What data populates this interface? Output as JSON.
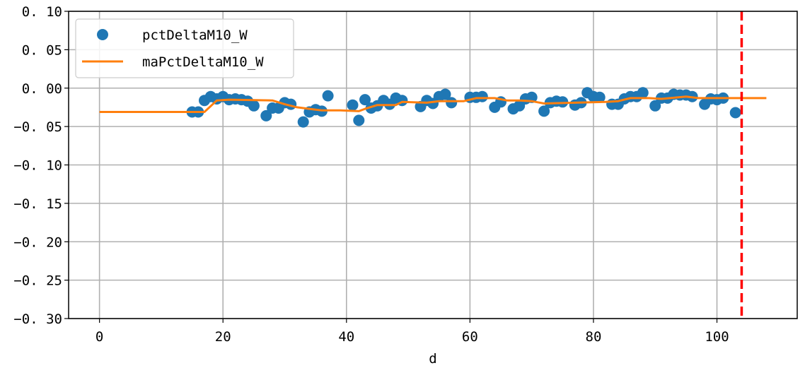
{
  "chart_data": {
    "type": "scatter",
    "xlabel": "d",
    "ylabel": "",
    "xlim": [
      -5,
      113
    ],
    "ylim": [
      -0.3,
      0.1
    ],
    "x_ticks": [
      0,
      20,
      40,
      60,
      80,
      100
    ],
    "x_tick_labels": [
      "0",
      "20",
      "40",
      "60",
      "80",
      "100"
    ],
    "y_ticks": [
      0.1,
      0.05,
      0.0,
      -0.05,
      -0.1,
      -0.15,
      -0.2,
      -0.25,
      -0.3
    ],
    "y_tick_labels": [
      "0. 10",
      "0. 05",
      "0. 00",
      "−0. 05",
      "−0. 10",
      "−0. 15",
      "−0. 20",
      "−0. 25",
      "−0. 30"
    ],
    "grid": true,
    "legend_position": "top-left",
    "series": [
      {
        "name": "pctDeltaM10_W",
        "kind": "scatter",
        "color": "#1f77b4",
        "points": [
          [
            15,
            -0.031
          ],
          [
            16,
            -0.031
          ],
          [
            17,
            -0.016
          ],
          [
            18,
            -0.011
          ],
          [
            19,
            -0.014
          ],
          [
            20,
            -0.011
          ],
          [
            21,
            -0.015
          ],
          [
            22,
            -0.014
          ],
          [
            23,
            -0.015
          ],
          [
            24,
            -0.017
          ],
          [
            25,
            -0.023
          ],
          [
            27,
            -0.036
          ],
          [
            28,
            -0.026
          ],
          [
            29,
            -0.026
          ],
          [
            30,
            -0.019
          ],
          [
            31,
            -0.021
          ],
          [
            33,
            -0.044
          ],
          [
            34,
            -0.031
          ],
          [
            35,
            -0.028
          ],
          [
            36,
            -0.03
          ],
          [
            37,
            -0.01
          ],
          [
            41,
            -0.022
          ],
          [
            42,
            -0.042
          ],
          [
            43,
            -0.015
          ],
          [
            44,
            -0.026
          ],
          [
            45,
            -0.023
          ],
          [
            46,
            -0.016
          ],
          [
            47,
            -0.021
          ],
          [
            48,
            -0.013
          ],
          [
            49,
            -0.016
          ],
          [
            52,
            -0.024
          ],
          [
            53,
            -0.016
          ],
          [
            54,
            -0.02
          ],
          [
            55,
            -0.011
          ],
          [
            56,
            -0.008
          ],
          [
            57,
            -0.019
          ],
          [
            60,
            -0.012
          ],
          [
            61,
            -0.012
          ],
          [
            62,
            -0.011
          ],
          [
            64,
            -0.025
          ],
          [
            65,
            -0.018
          ],
          [
            67,
            -0.027
          ],
          [
            68,
            -0.023
          ],
          [
            69,
            -0.014
          ],
          [
            70,
            -0.012
          ],
          [
            72,
            -0.03
          ],
          [
            73,
            -0.019
          ],
          [
            74,
            -0.017
          ],
          [
            75,
            -0.018
          ],
          [
            77,
            -0.022
          ],
          [
            78,
            -0.019
          ],
          [
            79,
            -0.006
          ],
          [
            80,
            -0.011
          ],
          [
            81,
            -0.012
          ],
          [
            83,
            -0.021
          ],
          [
            84,
            -0.021
          ],
          [
            85,
            -0.014
          ],
          [
            86,
            -0.011
          ],
          [
            87,
            -0.011
          ],
          [
            88,
            -0.006
          ],
          [
            90,
            -0.023
          ],
          [
            91,
            -0.013
          ],
          [
            92,
            -0.013
          ],
          [
            93,
            -0.008
          ],
          [
            94,
            -0.009
          ],
          [
            95,
            -0.009
          ],
          [
            96,
            -0.011
          ],
          [
            98,
            -0.021
          ],
          [
            99,
            -0.014
          ],
          [
            100,
            -0.015
          ],
          [
            101,
            -0.013
          ],
          [
            103,
            -0.032
          ]
        ]
      },
      {
        "name": "maPctDeltaM10_W",
        "kind": "line",
        "color": "#ff7f0e",
        "points": [
          [
            0,
            -0.031
          ],
          [
            17,
            -0.031
          ],
          [
            19,
            -0.016
          ],
          [
            21,
            -0.015
          ],
          [
            28,
            -0.016
          ],
          [
            30,
            -0.021
          ],
          [
            32,
            -0.025
          ],
          [
            35,
            -0.028
          ],
          [
            36,
            -0.029
          ],
          [
            39,
            -0.029
          ],
          [
            42,
            -0.03
          ],
          [
            43,
            -0.027
          ],
          [
            45,
            -0.022
          ],
          [
            48,
            -0.022
          ],
          [
            49,
            -0.018
          ],
          [
            53,
            -0.019
          ],
          [
            55,
            -0.017
          ],
          [
            59,
            -0.017
          ],
          [
            61,
            -0.013
          ],
          [
            64,
            -0.013
          ],
          [
            66,
            -0.016
          ],
          [
            68,
            -0.016
          ],
          [
            70,
            -0.017
          ],
          [
            72,
            -0.02
          ],
          [
            77,
            -0.019
          ],
          [
            82,
            -0.018
          ],
          [
            84,
            -0.017
          ],
          [
            86,
            -0.013
          ],
          [
            89,
            -0.013
          ],
          [
            91,
            -0.014
          ],
          [
            95,
            -0.011
          ],
          [
            97,
            -0.013
          ],
          [
            103,
            -0.013
          ],
          [
            108,
            -0.013
          ]
        ]
      }
    ],
    "annotations": [
      {
        "kind": "vertical-dashed-line",
        "x": 104,
        "color": "#ff0000"
      }
    ]
  }
}
